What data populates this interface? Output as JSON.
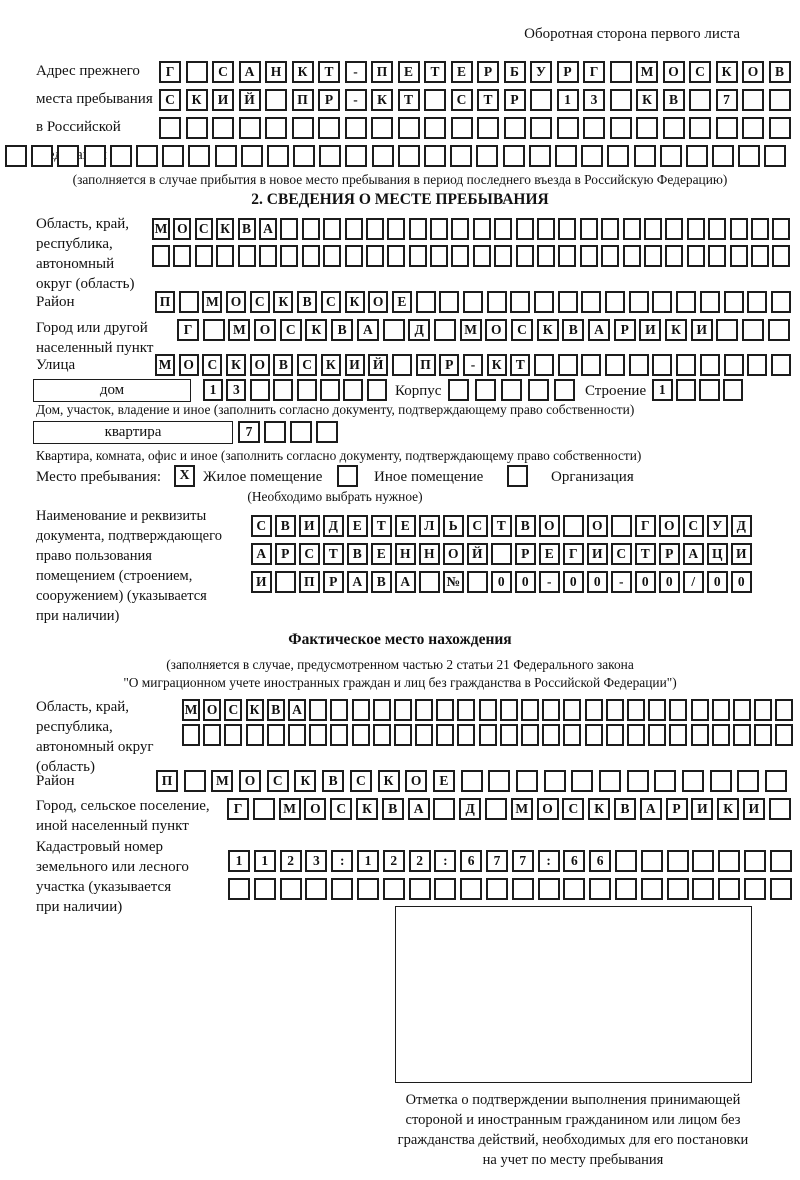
{
  "page": {
    "side_note": "Оборотная сторона первого листа"
  },
  "prev_address": {
    "label_lines": [
      "Адрес прежнего",
      "места пребывания",
      "в Российской",
      "Федерации"
    ],
    "rows": [
      {
        "text": "Г САНКТ-ПЕТЕРБУРГ МОСКОВ",
        "count": 24
      },
      {
        "text": "СКИЙ ПР-КТ СТР 13 КВ 7",
        "count": 24
      },
      {
        "text": "",
        "count": 24
      },
      {
        "text": "",
        "count": 30
      }
    ],
    "caption": "(заполняется в случае прибытия в новое место пребывания в период последнего въезда в Российскую Федерацию)"
  },
  "section2": {
    "title": "2. СВЕДЕНИЯ О МЕСТЕ ПРЕБЫВАНИЯ",
    "region": {
      "label_lines": [
        "Область, край,",
        "республика,",
        "автономный",
        "округ (область)"
      ],
      "rows": [
        {
          "text": "МОСКВА",
          "count": 30
        },
        {
          "text": "",
          "count": 30
        }
      ]
    },
    "district": {
      "label": "Район",
      "row": {
        "text": "П МОСКВСКОЕ",
        "count": 27
      }
    },
    "city": {
      "label_lines": [
        "Город или другой",
        "населенный пункт"
      ],
      "row": {
        "text": "Г МОСКВА Д МОСКВАРИКИ",
        "count": 24
      }
    },
    "street": {
      "label": "Улица",
      "row": {
        "text": "МОСКОВСКИЙ ПР-КТ",
        "count": 27
      }
    },
    "house": {
      "box_label": "дом",
      "house_cells": {
        "text": "13",
        "count": 8
      },
      "korpus_label": "Корпус",
      "korpus_cells": {
        "text": "",
        "count": 5
      },
      "stroenie_label": "Строение",
      "stroenie_cells": {
        "text": "1",
        "count": 4
      },
      "caption": "Дом, участок, владение и иное (заполнить согласно документу, подтверждающему право собственности)"
    },
    "apartment": {
      "box_label": "квартира",
      "cells": {
        "text": "7",
        "count": 4
      },
      "caption": "Квартира, комната, офис и иное (заполнить согласно документу, подтверждающему право собственности)"
    },
    "stay_place": {
      "label": "Место пребывания:",
      "options": [
        {
          "label": "Жилое помещение",
          "mark": "X"
        },
        {
          "label": "Иное помещение",
          "mark": ""
        },
        {
          "label": "Организация",
          "mark": ""
        }
      ],
      "note": "(Необходимо выбрать нужное)"
    },
    "document": {
      "label_lines": [
        "Наименование и реквизиты",
        "документа, подтверждающего",
        "право пользования",
        "помещением (строением,",
        "сооружением) (указывается",
        "при наличии)"
      ],
      "rows": [
        {
          "text": "СВИДЕТЕЛЬСТВО О ГОСУД",
          "count": 21
        },
        {
          "text": "АРСТВЕННОЙ РЕГИСТРАЦИ",
          "count": 21
        },
        {
          "text": "И ПРАВА № 00-00-00/000",
          "count": 21
        }
      ]
    }
  },
  "actual_location": {
    "title": "Фактическое место нахождения",
    "caption_lines": [
      "(заполняется в случае, предусмотренном частью 2 статьи 21 Федерального закона",
      "\"О миграционном учете иностранных граждан и лиц без гражданства в Российской Федерации\")"
    ],
    "region": {
      "label_lines": [
        "Область, край,",
        "республика,",
        "автономный округ",
        "(область)"
      ],
      "rows": [
        {
          "text": "МОСКВА",
          "count": 29
        },
        {
          "text": "",
          "count": 29
        }
      ]
    },
    "district": {
      "label": "Район",
      "row": {
        "text": "П МОСКВСКОЕ",
        "count": 23
      }
    },
    "city": {
      "label_lines": [
        "Город, сельское поселение,",
        "иной населенный пункт"
      ],
      "row": {
        "text": "Г МОСКВА Д МОСКВАРИКИ",
        "count": 22
      }
    },
    "cadastral": {
      "label_lines": [
        "Кадастровый номер",
        "земельного или лесного",
        "участка (указывается",
        "при наличии)"
      ],
      "rows": [
        {
          "text": "1123:122:677:66",
          "count": 22
        },
        {
          "text": "",
          "count": 22
        }
      ]
    },
    "stamp_caption_lines": [
      "Отметка о подтверждении выполнения принимающей",
      "стороной и иностранным гражданином или лицом без",
      "гражданства действий, необходимых для его постановки",
      "на учет по месту пребывания"
    ]
  }
}
